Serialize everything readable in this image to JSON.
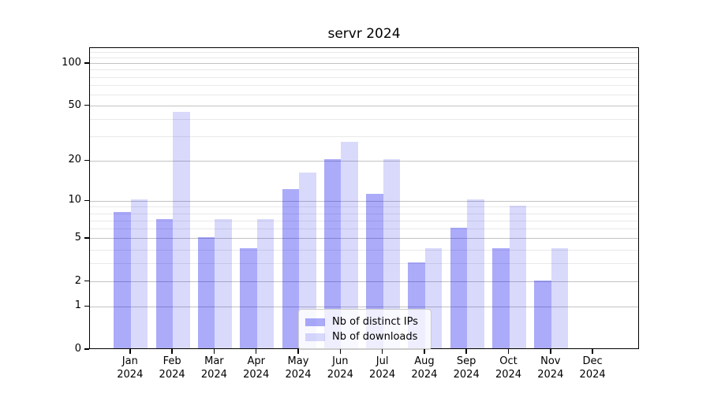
{
  "title": "servr 2024",
  "chart_data": {
    "type": "bar",
    "title": "servr 2024",
    "categories": [
      "Jan",
      "Feb",
      "Mar",
      "Apr",
      "May",
      "Jun",
      "Jul",
      "Aug",
      "Sep",
      "Oct",
      "Nov",
      "Dec"
    ],
    "x_tick_second_line": "2024",
    "series": [
      {
        "name": "Nb of distinct IPs",
        "color": "rgba(0,0,238,0.33)",
        "values": [
          8,
          7,
          5,
          4,
          12,
          20,
          11,
          3,
          6,
          4,
          2,
          0
        ]
      },
      {
        "name": "Nb of downloads",
        "color": "rgba(0,0,238,0.15)",
        "values": [
          10,
          44,
          7,
          7,
          16,
          27,
          20,
          4,
          10,
          9,
          4,
          0
        ]
      }
    ],
    "yscale": "log1p",
    "ylim": [
      0,
      129
    ],
    "yticks": [
      0,
      1,
      2,
      5,
      10,
      20,
      50,
      100
    ],
    "minor_gridlines": [
      3,
      4,
      6,
      7,
      8,
      9,
      30,
      40,
      60,
      70,
      80,
      90,
      110,
      120
    ],
    "grid": true,
    "legend_position": "lower center",
    "colors": {
      "major_grid": "#c3c3c3",
      "minor_grid": "#e9e9e9",
      "axis": "#000000",
      "legend_border": "#cccccc"
    }
  }
}
